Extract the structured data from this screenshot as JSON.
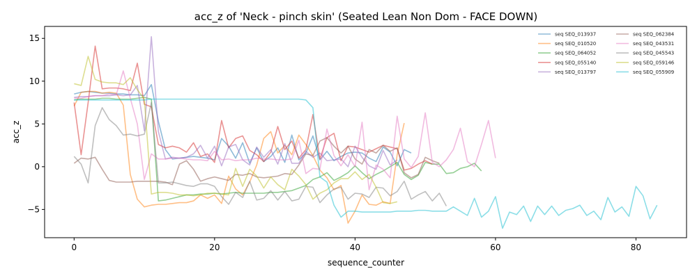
{
  "chart_data": {
    "type": "line",
    "title": "acc_z of 'Neck - pinch skin' (Seated Lean Non Dom - FACE DOWN)",
    "xlabel": "sequence_counter",
    "ylabel": "acc_z",
    "xlim": [
      -4.2,
      87.2
    ],
    "ylim": [
      -8.3,
      16.4
    ],
    "xticks": [
      0,
      20,
      40,
      60,
      80
    ],
    "yticks": [
      -5,
      0,
      5,
      10,
      15
    ],
    "grid": false,
    "legend_position": "top-right",
    "series": [
      {
        "name": "seq SEQ_013937",
        "color": "#1f77b4",
        "values": [
          8.5,
          8.7,
          8.8,
          8.7,
          8.6,
          8.6,
          8.5,
          8.5,
          8.4,
          8.4,
          8.3,
          9.6,
          5.3,
          2.0,
          0.9,
          1.0,
          1.1,
          1.2,
          1.1,
          1.0,
          0.8,
          3.3,
          2.4,
          1.0,
          2.8,
          0.4,
          2.2,
          0.6,
          1.2,
          2.2,
          0.5,
          3.7,
          0.8,
          1.6,
          3.6,
          0.8,
          1.8,
          0.7,
          1.2,
          1.6,
          1.7,
          1.6,
          1.0,
          0.6,
          2.3,
          1.7,
          0.1,
          2.0,
          1.6
        ]
      },
      {
        "name": "seq SEQ_010520",
        "color": "#ff7f0e",
        "values": [
          7.1,
          8.7,
          8.8,
          8.8,
          8.6,
          8.7,
          8.6,
          7.2,
          -0.9,
          -3.8,
          -4.7,
          -4.5,
          -4.4,
          -4.4,
          -4.3,
          -4.2,
          -4.2,
          -4.0,
          -3.3,
          -3.7,
          -3.3,
          -4.3,
          -1.1,
          -2.6,
          -3.3,
          -1.8,
          0.2,
          3.3,
          4.1,
          1.6,
          2.5,
          1.4,
          3.7,
          2.6,
          1.3,
          -0.4,
          -1.3,
          -2.7,
          -2.2,
          -6.6,
          -5.2,
          -3.3,
          -4.4,
          -4.5,
          -4.1,
          -4.3,
          1.4,
          5.1
        ]
      },
      {
        "name": "seq SEQ_064052",
        "color": "#2ca02c",
        "values": [
          7.8,
          7.9,
          7.9,
          7.9,
          8.0,
          8.0,
          7.9,
          7.9,
          7.9,
          8.0,
          8.1,
          7.9,
          -4.0,
          -3.9,
          -3.7,
          -3.5,
          -3.3,
          -3.3,
          -3.2,
          -3.2,
          -3.1,
          -3.2,
          -3.1,
          -3.0,
          -3.1,
          -3.1,
          -3.1,
          -3.1,
          -3.0,
          -3.0,
          -2.9,
          -2.8,
          -2.5,
          -2.2,
          -1.5,
          -1.2,
          -0.7,
          -1.6,
          -1.2,
          -0.7,
          0.1,
          -0.7,
          -1.4,
          -0.9,
          -0.5,
          0.0,
          0.5,
          -0.9,
          -1.5,
          -1.0,
          0.5,
          0.3,
          0.3,
          -0.8,
          -0.7,
          -0.2,
          -0.0,
          0.4,
          -0.5
        ]
      },
      {
        "name": "seq SEQ_055140",
        "color": "#d62728",
        "values": [
          7.5,
          1.4,
          7.5,
          14.1,
          9.1,
          9.2,
          9.2,
          9.1,
          8.9,
          12.1,
          7.3,
          7.0,
          2.6,
          2.2,
          2.4,
          2.2,
          1.7,
          2.8,
          1.2,
          1.5,
          0.5,
          5.4,
          2.2,
          3.3,
          3.6,
          1.9,
          1.4,
          0.6,
          1.7,
          4.7,
          2.0,
          3.0,
          1.0,
          2.0,
          6.1,
          0.9,
          3.4,
          3.9,
          0.7,
          2.4,
          2.3,
          2.0,
          1.7,
          2.1,
          2.5,
          2.3,
          2.1,
          -0.4,
          -0.2,
          0.3,
          0.7,
          0.3
        ]
      },
      {
        "name": "seq SEQ_013797",
        "color": "#9467bd",
        "values": [
          8.1,
          8.2,
          8.2,
          8.3,
          8.3,
          8.3,
          8.4,
          8.3,
          8.4,
          9.5,
          4.2,
          15.2,
          4.1,
          0.9,
          1.1,
          1.0,
          1.1,
          1.5,
          2.5,
          1.0,
          2.4,
          0.1,
          2.3,
          2.6,
          0.8,
          0.2,
          2.3,
          1.1,
          2.0,
          0.3,
          2.7,
          0.4,
          0.4,
          1.8,
          1.1,
          1.6,
          0.7,
          0.8,
          0.9,
          0.0,
          2.4,
          1.1,
          0.1,
          -0.3,
          1.9,
          0.2,
          0.8
        ]
      },
      {
        "name": "seq SEQ_062384",
        "color": "#8c564b",
        "values": [
          0.4,
          1.0,
          0.9,
          1.1,
          -0.3,
          -1.6,
          -1.8,
          -1.8,
          -1.8,
          -1.7,
          -1.7,
          -1.7,
          -1.7,
          -1.8,
          -2.1,
          0.3,
          0.7,
          -0.3,
          -1.7,
          -1.4,
          -1.2,
          -1.4,
          -1.6,
          -0.9,
          -1.0,
          -0.8,
          -1.2,
          -1.3,
          -1.2,
          -1.1,
          -0.8,
          -0.9,
          0.2,
          1.5,
          1.3,
          3.0,
          3.4,
          2.4,
          1.6,
          2.4,
          0.9,
          0.3,
          2.0,
          1.6,
          2.5,
          1.8,
          2.2,
          -0.7,
          -1.3,
          -0.9,
          1.1,
          0.7,
          0.4
        ]
      },
      {
        "name": "seq SEQ_043531",
        "color": "#e377c2",
        "values": [
          8.0,
          8.0,
          8.2,
          8.3,
          8.3,
          8.5,
          8.4,
          11.2,
          8.0,
          5.0,
          -1.5,
          1.5,
          0.9,
          0.9,
          1.0,
          1.0,
          0.9,
          0.8,
          0.8,
          0.7,
          1.8,
          0.8,
          0.9,
          0.7,
          0.8,
          0.8,
          1.0,
          0.9,
          0.9,
          0.8,
          0.8,
          0.9,
          3.1,
          -0.8,
          -0.2,
          -0.3,
          4.4,
          1.3,
          0.1,
          1.4,
          0.0,
          5.2,
          -2.7,
          0.2,
          -0.3,
          -1.3,
          5.9,
          0.9,
          -0.1,
          1.2,
          6.3,
          0.5,
          0.0,
          0.8,
          2.0,
          4.5,
          0.6,
          0.0,
          2.6,
          5.4,
          1.0
        ]
      },
      {
        "name": "seq SEQ_045543",
        "color": "#7f7f7f",
        "values": [
          1.2,
          0.3,
          -1.9,
          4.8,
          6.9,
          5.5,
          4.8,
          3.7,
          3.8,
          3.6,
          3.8,
          7.5,
          -1.9,
          -1.9,
          -1.8,
          -2.0,
          -2.2,
          -2.3,
          -2.0,
          -2.0,
          -2.3,
          -3.5,
          -4.4,
          -3.0,
          -3.6,
          -1.7,
          -3.9,
          -3.7,
          -2.8,
          -3.9,
          -2.9,
          -4.0,
          -3.8,
          -2.3,
          -2.4,
          -4.2,
          -3.3,
          -2.6,
          -2.4,
          -3.8,
          -3.1,
          -3.2,
          -3.6,
          -2.4,
          -2.5,
          -3.4,
          -2.9,
          -1.7,
          -3.8,
          -3.3,
          -2.9,
          -4.0,
          -3.1,
          -4.6
        ]
      },
      {
        "name": "seq SEQ_059146",
        "color": "#bcbd22",
        "values": [
          9.7,
          9.5,
          12.9,
          10.2,
          9.9,
          9.8,
          9.8,
          9.6,
          10.4,
          9.0,
          7.9,
          -3.2,
          -3.0,
          -3.0,
          -3.1,
          -3.3,
          -3.3,
          -3.4,
          -3.3,
          -3.1,
          -3.1,
          -3.2,
          -3.3,
          -0.2,
          -2.3,
          -0.3,
          -1.1,
          -2.5,
          -1.2,
          -2.1,
          -2.7,
          -0.3,
          -1.1,
          -2.1,
          -3.8,
          -3.1,
          -2.7,
          -1.9,
          -1.4,
          -1.4,
          -0.6,
          -1.5,
          -0.9,
          -2.4,
          -4.2,
          -4.3,
          -4.1
        ]
      },
      {
        "name": "seq SEQ_055909",
        "color": "#17becf",
        "values": [
          7.8,
          7.8,
          7.8,
          7.8,
          7.8,
          7.8,
          7.8,
          7.8,
          7.8,
          7.8,
          7.8,
          7.9,
          7.9,
          7.9,
          7.9,
          7.9,
          7.9,
          7.9,
          7.9,
          7.9,
          7.9,
          7.9,
          7.9,
          7.9,
          7.9,
          7.9,
          7.9,
          7.9,
          7.9,
          7.9,
          7.9,
          7.9,
          7.9,
          7.8,
          6.9,
          -1.2,
          -1.8,
          -4.5,
          -5.9,
          -5.2,
          -5.2,
          -5.3,
          -5.3,
          -5.3,
          -5.3,
          -5.3,
          -5.2,
          -5.2,
          -5.2,
          -5.1,
          -5.1,
          -5.2,
          -5.2,
          -5.2,
          -4.7,
          -5.2,
          -5.7,
          -3.7,
          -5.9,
          -5.2,
          -3.5,
          -7.2,
          -5.3,
          -5.6,
          -4.6,
          -6.4,
          -4.6,
          -5.6,
          -4.6,
          -5.7,
          -5.1,
          -4.9,
          -4.5,
          -5.7,
          -5.2,
          -6.2,
          -3.6,
          -5.3,
          -4.7,
          -5.8,
          -2.3,
          -3.4,
          -6.1,
          -4.5
        ]
      }
    ]
  }
}
